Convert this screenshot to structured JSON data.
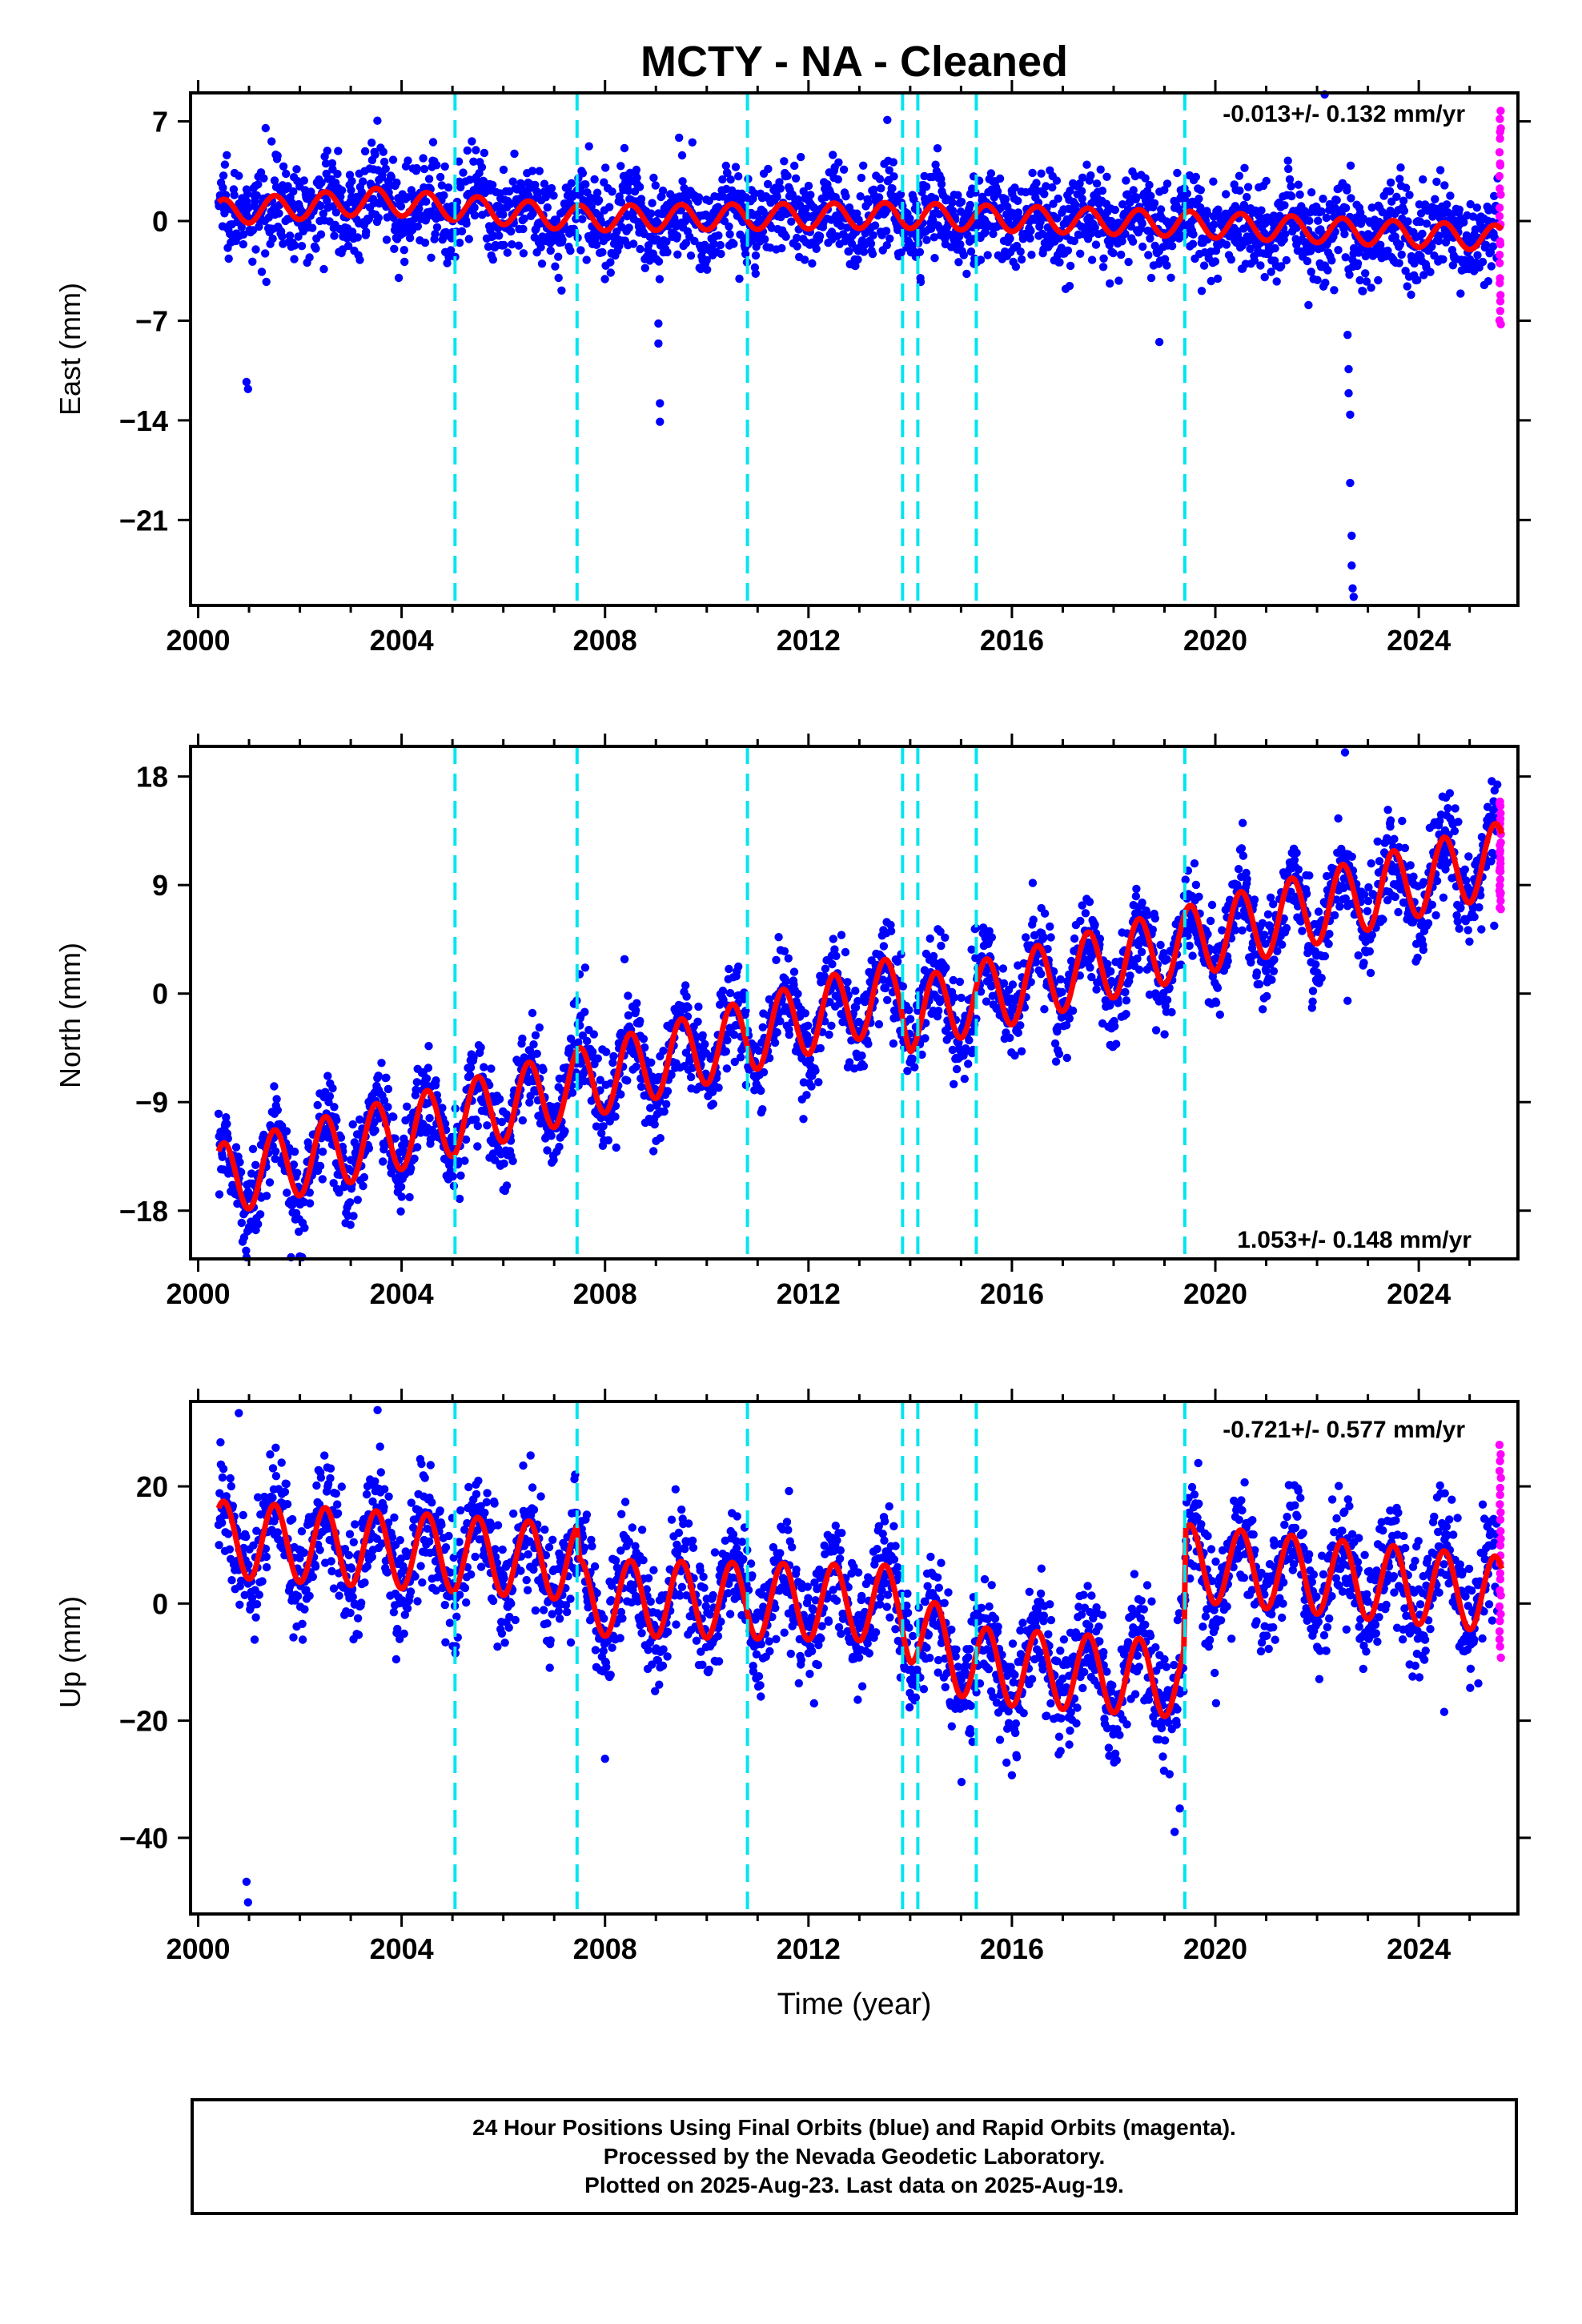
{
  "title": "MCTY  - NA - Cleaned",
  "x_axis_label": "Time (year)",
  "x_ticks": [
    "2000",
    "2004",
    "2008",
    "2012",
    "2016",
    "2020",
    "2024"
  ],
  "colors": {
    "final_orbits": "#0000ff",
    "rapid_orbits": "#ff00ff",
    "model": "#ff0000",
    "breaks": "#00e5ee",
    "frame": "#000000"
  },
  "footer": {
    "line1": "24 Hour Positions Using Final Orbits (blue) and Rapid Orbits (magenta).",
    "line2": "Processed by the Nevada Geodetic Laboratory.",
    "line3": "Plotted on 2025-Aug-23. Last data on 2025-Aug-19."
  },
  "chart_data": [
    {
      "type": "scatter",
      "component": "east",
      "ylabel": "East (mm)",
      "xlim": [
        1999.85,
        2025.95
      ],
      "ylim": [
        -27,
        9
      ],
      "y_ticks": [
        7,
        0,
        -7,
        -14,
        -21
      ],
      "y_tick_labels": [
        "7",
        "0",
        "−7",
        "−14",
        "−21"
      ],
      "rate_label": "-0.013+/- 0.132 mm/yr",
      "rate_position": "top-right",
      "grid": false,
      "data_start": 2000.4,
      "data_end": 2025.63,
      "final_orbits_end": 2025.55,
      "model_trend": {
        "x": [
          2000.4,
          2003.5,
          2007.5,
          2013.8,
          2019.4,
          2025.6
        ],
        "y": [
          0.6,
          1.4,
          0.2,
          0.4,
          -0.2,
          -1.2
        ]
      },
      "seasonal_amplitude_mm": 0.9,
      "scatter_spread_mm": 1.6,
      "rapid_orbits_range": [
        -7.5,
        8
      ],
      "outliers": [
        {
          "x": 2000.95,
          "y": -11.3
        },
        {
          "x": 2000.98,
          "y": -11.8
        },
        {
          "x": 2009.05,
          "y": -7.2
        },
        {
          "x": 2009.05,
          "y": -8.6
        },
        {
          "x": 2009.08,
          "y": -12.8
        },
        {
          "x": 2009.08,
          "y": -14.1
        },
        {
          "x": 2013.55,
          "y": 7.1
        },
        {
          "x": 2018.9,
          "y": -8.5
        },
        {
          "x": 2022.15,
          "y": 9.0
        },
        {
          "x": 2022.6,
          "y": -8.0
        },
        {
          "x": 2022.62,
          "y": -10.4
        },
        {
          "x": 2022.62,
          "y": -12.1
        },
        {
          "x": 2022.65,
          "y": -13.6
        },
        {
          "x": 2022.65,
          "y": -18.4
        },
        {
          "x": 2022.68,
          "y": -22.1
        },
        {
          "x": 2022.68,
          "y": -24.2
        },
        {
          "x": 2022.7,
          "y": -25.8
        },
        {
          "x": 2022.72,
          "y": -26.4
        }
      ]
    },
    {
      "type": "scatter",
      "component": "north",
      "ylabel": "North (mm)",
      "xlim": [
        1999.85,
        2025.95
      ],
      "ylim": [
        -22,
        20.5
      ],
      "y_ticks": [
        18,
        9,
        0,
        -9,
        -18
      ],
      "y_tick_labels": [
        "18",
        "9",
        "0",
        "−9",
        "−18"
      ],
      "rate_label": "1.053+/- 0.148 mm/yr",
      "rate_position": "bottom-right",
      "grid": false,
      "data_start": 2000.4,
      "data_end": 2025.63,
      "final_orbits_end": 2025.55,
      "model_trend": {
        "x": [
          2000.4,
          2005.0,
          2010.0,
          2013.8,
          2014.0,
          2019.4,
          2025.6
        ],
        "y": [
          -15.5,
          -10.5,
          -4.5,
          0.2,
          -1.8,
          4.2,
          11.2
        ]
      },
      "seasonal_amplitude_mm": 3.0,
      "scatter_spread_mm": 1.9,
      "rapid_orbits_range": [
        7,
        16
      ],
      "outliers": [
        {
          "x": 2002.0,
          "y": -21.8
        },
        {
          "x": 2007.5,
          "y": 1.6
        },
        {
          "x": 2011.9,
          "y": -10.4
        },
        {
          "x": 2022.55,
          "y": 20.0
        },
        {
          "x": 2022.6,
          "y": -0.6
        }
      ]
    },
    {
      "type": "scatter",
      "component": "up",
      "ylabel": "Up (mm)",
      "xlim": [
        1999.85,
        2025.95
      ],
      "ylim": [
        -53,
        34.5
      ],
      "y_ticks": [
        20,
        0,
        -20,
        -40
      ],
      "y_tick_labels": [
        "20",
        "0",
        "−20",
        "−40"
      ],
      "rate_label": "-0.721+/- 0.577 mm/yr",
      "rate_position": "top-right",
      "grid": false,
      "data_start": 2000.4,
      "data_end": 2025.63,
      "final_orbits_end": 2025.55,
      "model_trend": {
        "x": [
          2000.4,
          2005.0,
          2007.45,
          2007.5,
          2013.8,
          2014.0,
          2015.2,
          2019.38,
          2019.42,
          2025.6
        ],
        "y": [
          11.0,
          8.5,
          7.0,
          1.0,
          0.0,
          -3.5,
          -10.5,
          -13.0,
          7.0,
          1.5
        ]
      },
      "seasonal_amplitude_mm": 6.5,
      "scatter_spread_mm": 5.0,
      "rapid_orbits_range": [
        -9,
        27
      ],
      "outliers": [
        {
          "x": 2000.8,
          "y": 32.5
        },
        {
          "x": 2000.95,
          "y": -47.5
        },
        {
          "x": 2000.98,
          "y": -51.0
        },
        {
          "x": 2008.0,
          "y": -26.5
        },
        {
          "x": 2019.2,
          "y": -39.0
        },
        {
          "x": 2019.3,
          "y": -35.0
        },
        {
          "x": 2024.5,
          "y": -18.5
        }
      ]
    }
  ],
  "break_lines": [
    2005.05,
    2007.45,
    2010.8,
    2013.85,
    2014.15,
    2015.3,
    2019.4
  ]
}
